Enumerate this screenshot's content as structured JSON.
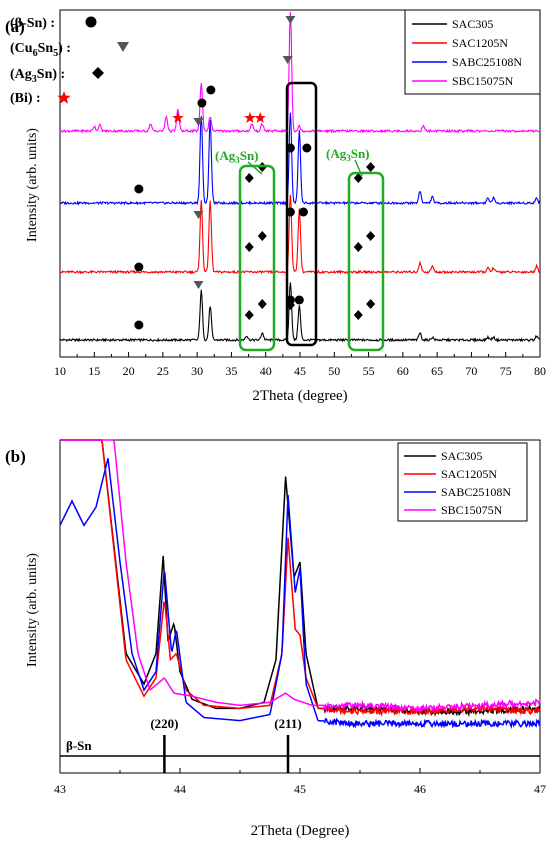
{
  "figure": {
    "panel_a_label": "(a)",
    "panel_b_label": "(b)"
  },
  "colors": {
    "SAC305": "#000000",
    "SAC1205N": "#ff0000",
    "SABC25108N": "#0000ff",
    "SBC15075N": "#ff00ff",
    "box_green": "#22aa22",
    "box_black": "#000000",
    "bi_star": "#ff0000"
  },
  "phase_key": {
    "beta_sn": {
      "text": "(β-Sn) :",
      "marker": "filled-circle"
    },
    "cu6sn5": {
      "text_main": "(Cu",
      "sub1": "6",
      "mid": "Sn",
      "sub2": "5",
      "end": ") :",
      "marker": "down-triangle"
    },
    "ag3sn": {
      "text_main": "(Ag",
      "sub1": "3",
      "end": "Sn) :",
      "marker": "diamond"
    },
    "bi": {
      "text": "(Bi) :",
      "marker": "red-star"
    }
  },
  "annotations_a": {
    "ag3sn_box_label_left": {
      "main": "(Ag",
      "sub": "3",
      "end": "Sn)"
    },
    "ag3sn_box_label_right": {
      "main": "(Ag",
      "sub": "3",
      "end": "Sn)"
    }
  },
  "chart_data": [
    {
      "type": "line",
      "panel": "a",
      "xlabel": "2Theta (degree)",
      "ylabel": "Intensity (arb. units)",
      "xlim": [
        10,
        80
      ],
      "x_ticks": [
        10,
        15,
        20,
        25,
        30,
        35,
        40,
        45,
        50,
        55,
        60,
        65,
        70,
        75,
        80
      ],
      "legend": {
        "placement": "top-right",
        "entries": [
          "SAC305",
          "SAC1205N",
          "SABC25108N",
          "SBC15075N"
        ]
      },
      "series": [
        {
          "name": "SAC305",
          "peaks": [
            [
              30.6,
              55
            ],
            [
              31.9,
              38
            ],
            [
              43.6,
              65
            ],
            [
              44.9,
              38
            ],
            [
              37.2,
              5
            ],
            [
              39.5,
              8
            ],
            [
              62.5,
              8
            ],
            [
              64.3,
              3
            ],
            [
              72.4,
              3
            ],
            [
              73.2,
              3
            ],
            [
              79.5,
              4
            ]
          ]
        },
        {
          "name": "SAC1205N",
          "peaks": [
            [
              30.6,
              75
            ],
            [
              31.9,
              75
            ],
            [
              43.6,
              82
            ],
            [
              44.9,
              66
            ],
            [
              62.5,
              10
            ],
            [
              64.3,
              6
            ],
            [
              72.4,
              4
            ],
            [
              73.2,
              4
            ],
            [
              79.5,
              6
            ]
          ]
        },
        {
          "name": "SABC25108N",
          "peaks": [
            [
              30.6,
              88
            ],
            [
              31.9,
              82
            ],
            [
              43.6,
              90
            ],
            [
              44.9,
              72
            ],
            [
              62.5,
              12
            ],
            [
              64.3,
              6
            ],
            [
              72.4,
              5
            ],
            [
              73.2,
              5
            ],
            [
              79.5,
              5
            ]
          ]
        },
        {
          "name": "SBC15075N",
          "peaks": [
            [
              15,
              4
            ],
            [
              15.8,
              5
            ],
            [
              23.2,
              6
            ],
            [
              25.5,
              12
            ],
            [
              27.2,
              18
            ],
            [
              30.6,
              40
            ],
            [
              31.9,
              12
            ],
            [
              38.0,
              6
            ],
            [
              39.5,
              6
            ],
            [
              43.6,
              100
            ],
            [
              44.9,
              4
            ],
            [
              63.0,
              4
            ]
          ]
        }
      ],
      "markers": {
        "beta_sn_circles": [
          [
            21.5,
            "SAC305"
          ],
          [
            21.5,
            "SAC1205N"
          ],
          [
            21.5,
            "SABC25108N"
          ],
          [
            30.7,
            "SBC15075N"
          ],
          [
            32.0,
            "SBC15075N"
          ],
          [
            43.6,
            "SAC305"
          ],
          [
            43.6,
            "SAC1205N"
          ],
          [
            43.6,
            "SABC25108N"
          ],
          [
            44.9,
            "SAC305"
          ],
          [
            45.5,
            "SAC1205N"
          ],
          [
            46.0,
            "SABC25108N"
          ]
        ],
        "cu6sn5_triangles": [
          [
            30.2,
            "SAC305"
          ],
          [
            30.2,
            "SAC1205N"
          ],
          [
            30.2,
            "SABC25108N"
          ],
          [
            30.2,
            "SBC15075N"
          ],
          [
            43.2,
            "SBC15075N"
          ],
          [
            43.6,
            "top"
          ]
        ],
        "ag3sn_diamonds": [
          [
            37.6,
            "SAC305"
          ],
          [
            39.5,
            "SAC305"
          ],
          [
            37.6,
            "SAC1205N"
          ],
          [
            39.5,
            "SAC1205N"
          ],
          [
            37.6,
            "SABC25108N"
          ],
          [
            39.5,
            "SABC25108N"
          ],
          [
            53.5,
            "SAC305"
          ],
          [
            55.3,
            "SAC305"
          ],
          [
            53.5,
            "SAC1205N"
          ],
          [
            55.3,
            "SAC1205N"
          ],
          [
            53.5,
            "SABC25108N"
          ],
          [
            55.3,
            "SABC25108N"
          ],
          [
            43.6,
            "SAC305"
          ]
        ],
        "bi_stars": [
          [
            27.2,
            "SBC15075N"
          ],
          [
            37.7,
            "SBC15075N"
          ],
          [
            39.2,
            "SBC15075N"
          ]
        ]
      }
    },
    {
      "type": "line",
      "panel": "b",
      "xlabel": "2Theta (Degree)",
      "ylabel": "Intensity (arb. units)",
      "xlim": [
        43,
        47
      ],
      "x_ticks": [
        43,
        44,
        45,
        46,
        47
      ],
      "legend": {
        "placement": "top-right",
        "entries": [
          "SAC305",
          "SAC1205N",
          "SABC25108N",
          "SBC15075N"
        ]
      },
      "reference": {
        "label": "β-Sn",
        "lines": [
          {
            "x": 43.87,
            "label": "(220)"
          },
          {
            "x": 44.9,
            "label": "(211)"
          }
        ]
      },
      "series": [
        {
          "name": "SAC305",
          "points": [
            [
              43.0,
              100
            ],
            [
              43.35,
              100
            ],
            [
              43.55,
              30
            ],
            [
              43.7,
              20
            ],
            [
              43.8,
              30
            ],
            [
              43.86,
              62
            ],
            [
              43.9,
              34
            ],
            [
              43.95,
              40
            ],
            [
              44.0,
              24
            ],
            [
              44.1,
              15
            ],
            [
              44.3,
              12
            ],
            [
              44.5,
              12
            ],
            [
              44.7,
              14
            ],
            [
              44.8,
              28
            ],
            [
              44.88,
              88
            ],
            [
              44.95,
              55
            ],
            [
              45.0,
              60
            ],
            [
              45.05,
              30
            ],
            [
              45.15,
              12
            ],
            [
              45.5,
              12
            ],
            [
              46.0,
              11
            ],
            [
              46.5,
              11
            ],
            [
              47.0,
              12
            ]
          ]
        },
        {
          "name": "SAC1205N",
          "points": [
            [
              43.0,
              100
            ],
            [
              43.35,
              100
            ],
            [
              43.55,
              28
            ],
            [
              43.7,
              16
            ],
            [
              43.8,
              22
            ],
            [
              43.87,
              48
            ],
            [
              43.92,
              28
            ],
            [
              43.97,
              30
            ],
            [
              44.05,
              18
            ],
            [
              44.2,
              13
            ],
            [
              44.5,
              12
            ],
            [
              44.75,
              13
            ],
            [
              44.85,
              30
            ],
            [
              44.9,
              68
            ],
            [
              44.96,
              38
            ],
            [
              45.0,
              36
            ],
            [
              45.05,
              22
            ],
            [
              45.15,
              12
            ],
            [
              45.5,
              11
            ],
            [
              46.0,
              11
            ],
            [
              46.5,
              12
            ],
            [
              47.0,
              11
            ]
          ]
        },
        {
          "name": "SABC25108N",
          "points": [
            [
              43.0,
              72
            ],
            [
              43.1,
              80
            ],
            [
              43.2,
              72
            ],
            [
              43.3,
              78
            ],
            [
              43.4,
              94
            ],
            [
              43.5,
              60
            ],
            [
              43.6,
              30
            ],
            [
              43.7,
              18
            ],
            [
              43.8,
              24
            ],
            [
              43.87,
              58
            ],
            [
              43.93,
              30
            ],
            [
              43.97,
              38
            ],
            [
              44.05,
              14
            ],
            [
              44.2,
              9
            ],
            [
              44.5,
              8
            ],
            [
              44.75,
              10
            ],
            [
              44.85,
              30
            ],
            [
              44.9,
              82
            ],
            [
              44.96,
              50
            ],
            [
              45.0,
              58
            ],
            [
              45.05,
              20
            ],
            [
              45.15,
              8
            ],
            [
              45.5,
              7
            ],
            [
              46.0,
              7
            ],
            [
              46.5,
              7
            ],
            [
              47.0,
              7
            ]
          ]
        },
        {
          "name": "SBC15075N",
          "points": [
            [
              43.0,
              100
            ],
            [
              43.45,
              100
            ],
            [
              43.55,
              60
            ],
            [
              43.65,
              30
            ],
            [
              43.75,
              18
            ],
            [
              43.87,
              22
            ],
            [
              43.95,
              17
            ],
            [
              44.1,
              16
            ],
            [
              44.3,
              14
            ],
            [
              44.5,
              13
            ],
            [
              44.75,
              14
            ],
            [
              44.88,
              17
            ],
            [
              44.95,
              15
            ],
            [
              45.1,
              13
            ],
            [
              45.5,
              13
            ],
            [
              46.0,
              12
            ],
            [
              46.5,
              13
            ],
            [
              47.0,
              14
            ]
          ]
        }
      ]
    }
  ]
}
